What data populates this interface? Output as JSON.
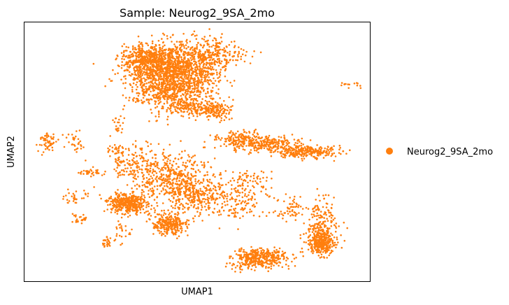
{
  "chart_data": {
    "type": "scatter",
    "title": "Sample: Neurog2_9SA_2mo",
    "xlabel": "UMAP1",
    "ylabel": "UMAP2",
    "x_ticks": false,
    "y_ticks": false,
    "grid": false,
    "legend_position": "right",
    "series": [
      {
        "name": "Neurog2_9SA_2mo",
        "color": "#ff7f0e"
      }
    ],
    "clusters": [
      {
        "cx": 0.43,
        "cy": 0.79,
        "sx": 0.06,
        "sy": 0.06,
        "n": 1500
      },
      {
        "cx": 0.36,
        "cy": 0.86,
        "sx": 0.04,
        "sy": 0.025,
        "n": 450
      },
      {
        "cx": 0.53,
        "cy": 0.87,
        "sx": 0.045,
        "sy": 0.035,
        "n": 350
      },
      {
        "cx": 0.55,
        "cy": 0.66,
        "sx": 0.025,
        "sy": 0.02,
        "n": 160
      },
      {
        "cx": 0.48,
        "cy": 0.67,
        "sx": 0.035,
        "sy": 0.015,
        "n": 100
      },
      {
        "cx": 0.69,
        "cy": 0.53,
        "sx": 0.05,
        "sy": 0.015,
        "n": 260
      },
      {
        "cx": 0.82,
        "cy": 0.5,
        "sx": 0.045,
        "sy": 0.012,
        "n": 260
      },
      {
        "cx": 0.62,
        "cy": 0.55,
        "sx": 0.04,
        "sy": 0.015,
        "n": 120
      },
      {
        "cx": 0.42,
        "cy": 0.4,
        "sx": 0.06,
        "sy": 0.05,
        "n": 500
      },
      {
        "cx": 0.3,
        "cy": 0.3,
        "sx": 0.03,
        "sy": 0.02,
        "n": 400
      },
      {
        "cx": 0.42,
        "cy": 0.22,
        "sx": 0.025,
        "sy": 0.02,
        "n": 280
      },
      {
        "cx": 0.48,
        "cy": 0.33,
        "sx": 0.035,
        "sy": 0.03,
        "n": 180
      },
      {
        "cx": 0.6,
        "cy": 0.32,
        "sx": 0.06,
        "sy": 0.04,
        "n": 220
      },
      {
        "cx": 0.68,
        "cy": 0.09,
        "sx": 0.04,
        "sy": 0.02,
        "n": 400
      },
      {
        "cx": 0.86,
        "cy": 0.15,
        "sx": 0.02,
        "sy": 0.025,
        "n": 350
      },
      {
        "cx": 0.86,
        "cy": 0.24,
        "sx": 0.025,
        "sy": 0.04,
        "n": 140
      },
      {
        "cx": 0.78,
        "cy": 0.29,
        "sx": 0.015,
        "sy": 0.02,
        "n": 30
      },
      {
        "cx": 0.07,
        "cy": 0.54,
        "sx": 0.015,
        "sy": 0.02,
        "n": 60
      },
      {
        "cx": 0.14,
        "cy": 0.54,
        "sx": 0.02,
        "sy": 0.02,
        "n": 30
      },
      {
        "cx": 0.27,
        "cy": 0.51,
        "sx": 0.015,
        "sy": 0.01,
        "n": 30
      },
      {
        "cx": 0.34,
        "cy": 0.48,
        "sx": 0.02,
        "sy": 0.03,
        "n": 40
      },
      {
        "cx": 0.28,
        "cy": 0.46,
        "sx": 0.015,
        "sy": 0.02,
        "n": 30
      },
      {
        "cx": 0.2,
        "cy": 0.42,
        "sx": 0.02,
        "sy": 0.008,
        "n": 35
      },
      {
        "cx": 0.31,
        "cy": 0.42,
        "sx": 0.02,
        "sy": 0.01,
        "n": 30
      },
      {
        "cx": 0.14,
        "cy": 0.32,
        "sx": 0.015,
        "sy": 0.015,
        "n": 30
      },
      {
        "cx": 0.16,
        "cy": 0.24,
        "sx": 0.01,
        "sy": 0.01,
        "n": 25
      },
      {
        "cx": 0.28,
        "cy": 0.19,
        "sx": 0.015,
        "sy": 0.02,
        "n": 25
      },
      {
        "cx": 0.24,
        "cy": 0.15,
        "sx": 0.006,
        "sy": 0.012,
        "n": 25
      },
      {
        "cx": 0.27,
        "cy": 0.6,
        "sx": 0.01,
        "sy": 0.02,
        "n": 20
      },
      {
        "cx": 0.33,
        "cy": 0.7,
        "sx": 0.015,
        "sy": 0.004,
        "n": 12
      },
      {
        "cx": 0.42,
        "cy": 0.71,
        "sx": 0.03,
        "sy": 0.005,
        "n": 20
      },
      {
        "cx": 0.94,
        "cy": 0.76,
        "sx": 0.025,
        "sy": 0.006,
        "n": 18
      },
      {
        "cx": 0.76,
        "cy": 0.27,
        "sx": 0.025,
        "sy": 0.02,
        "n": 25
      },
      {
        "cx": 0.66,
        "cy": 0.39,
        "sx": 0.03,
        "sy": 0.02,
        "n": 40
      }
    ],
    "outliers": [
      [
        0.2,
        0.84
      ]
    ]
  }
}
